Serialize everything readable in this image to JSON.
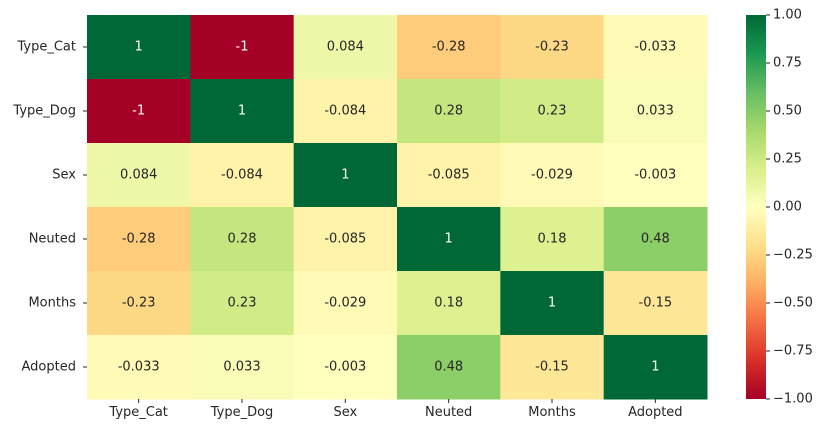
{
  "chart_data": {
    "type": "heatmap",
    "rows": [
      "Type_Cat",
      "Type_Dog",
      "Sex",
      "Neuted",
      "Months",
      "Adopted"
    ],
    "columns": [
      "Type_Cat",
      "Type_Dog",
      "Sex",
      "Neuted",
      "Months",
      "Adopted"
    ],
    "values": [
      [
        1,
        -1,
        0.084,
        -0.28,
        -0.23,
        -0.033
      ],
      [
        -1,
        1,
        -0.084,
        0.28,
        0.23,
        0.033
      ],
      [
        0.084,
        -0.084,
        1,
        -0.085,
        -0.029,
        -0.003
      ],
      [
        -0.28,
        0.28,
        -0.085,
        1,
        0.18,
        0.48
      ],
      [
        -0.23,
        0.23,
        -0.029,
        0.18,
        1,
        -0.15
      ],
      [
        -0.033,
        0.033,
        -0.003,
        0.48,
        -0.15,
        1
      ]
    ],
    "annotations": [
      [
        "1",
        "-1",
        "0.084",
        "-0.28",
        "-0.23",
        "-0.033"
      ],
      [
        "-1",
        "1",
        "-0.084",
        "0.28",
        "0.23",
        "0.033"
      ],
      [
        "0.084",
        "-0.084",
        "1",
        "-0.085",
        "-0.029",
        "-0.003"
      ],
      [
        "-0.28",
        "0.28",
        "-0.085",
        "1",
        "0.18",
        "0.48"
      ],
      [
        "-0.23",
        "0.23",
        "-0.029",
        "0.18",
        "1",
        "-0.15"
      ],
      [
        "-0.033",
        "0.033",
        "-0.003",
        "0.48",
        "-0.15",
        "1"
      ]
    ],
    "colormap": "RdYlGn",
    "vmin": -1,
    "vmax": 1,
    "colorbar_ticks": [
      1,
      0.75,
      0.5,
      0.25,
      0,
      -0.25,
      -0.5,
      -0.75,
      -1
    ],
    "colorbar_tick_labels": [
      "1.00",
      "0.75",
      "0.50",
      "0.25",
      "0.00",
      "−0.25",
      "−0.50",
      "−0.75",
      "−1.00"
    ],
    "title": "",
    "xlabel": "",
    "ylabel": ""
  }
}
